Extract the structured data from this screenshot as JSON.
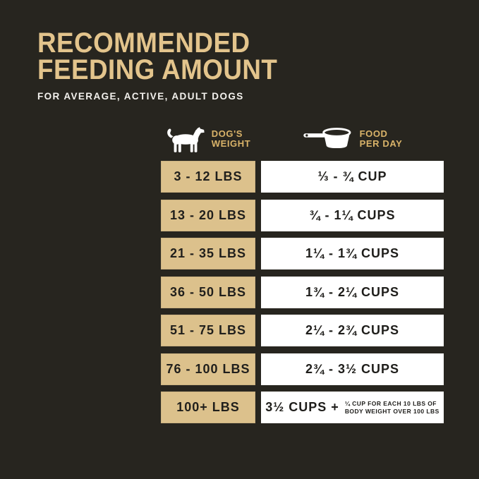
{
  "header": {
    "title_line1": "RECOMMENDED",
    "title_line2": "FEEDING AMOUNT",
    "subtitle": "FOR AVERAGE, ACTIVE, ADULT DOGS"
  },
  "table": {
    "col1_header": {
      "line1": "DOG'S",
      "line2": "WEIGHT",
      "icon": "dog-icon"
    },
    "col2_header": {
      "line1": "FOOD",
      "line2": "PER DAY",
      "icon": "measuring-cup-icon"
    },
    "rows": [
      {
        "weight": "3 - 12 LBS",
        "food": "⅓ - ¾ CUP"
      },
      {
        "weight": "13 - 20 LBS",
        "food": "¾ - 1¼ CUPS"
      },
      {
        "weight": "21 - 35 LBS",
        "food": "1¼ - 1¾ CUPS"
      },
      {
        "weight": "36 - 50 LBS",
        "food": "1¾ - 2¼ CUPS"
      },
      {
        "weight": "51 - 75 LBS",
        "food": "2¼ - 2¾ CUPS"
      },
      {
        "weight": "76 - 100 LBS",
        "food": "2¾ - 3½ CUPS"
      },
      {
        "weight": "100+ LBS",
        "food": "3½ CUPS +",
        "note_line1": "¼ CUP FOR EACH 10 LBS OF",
        "note_line2": "BODY WEIGHT OVER 100 LBS"
      }
    ]
  },
  "colors": {
    "background": "#27251f",
    "title_gold": "#e3c48c",
    "header_label_gold": "#d9b369",
    "weight_cell_tan": "#dcc18c",
    "food_cell_white": "#ffffff",
    "dark_text": "#1e1d1a",
    "subtitle_white": "#f4f2ee",
    "icon_white": "#ffffff"
  },
  "chart_data": {
    "type": "table",
    "title": "RECOMMENDED FEEDING AMOUNT",
    "subtitle": "FOR AVERAGE, ACTIVE, ADULT DOGS",
    "columns": [
      "DOG'S WEIGHT",
      "FOOD PER DAY"
    ],
    "rows": [
      [
        "3 - 12 LBS",
        "⅓ - ¾ CUP"
      ],
      [
        "13 - 20 LBS",
        "¾ - 1¼ CUPS"
      ],
      [
        "21 - 35 LBS",
        "1¼ - 1¾ CUPS"
      ],
      [
        "36 - 50 LBS",
        "1¾ - 2¼ CUPS"
      ],
      [
        "51 - 75 LBS",
        "2¼ - 2¾ CUPS"
      ],
      [
        "76 - 100 LBS",
        "2¾ - 3½ CUPS"
      ],
      [
        "100+ LBS",
        "3½ CUPS + ¼ CUP FOR EACH 10 LBS OF BODY WEIGHT OVER 100 LBS"
      ]
    ],
    "legend_position": "none",
    "grid": false
  }
}
